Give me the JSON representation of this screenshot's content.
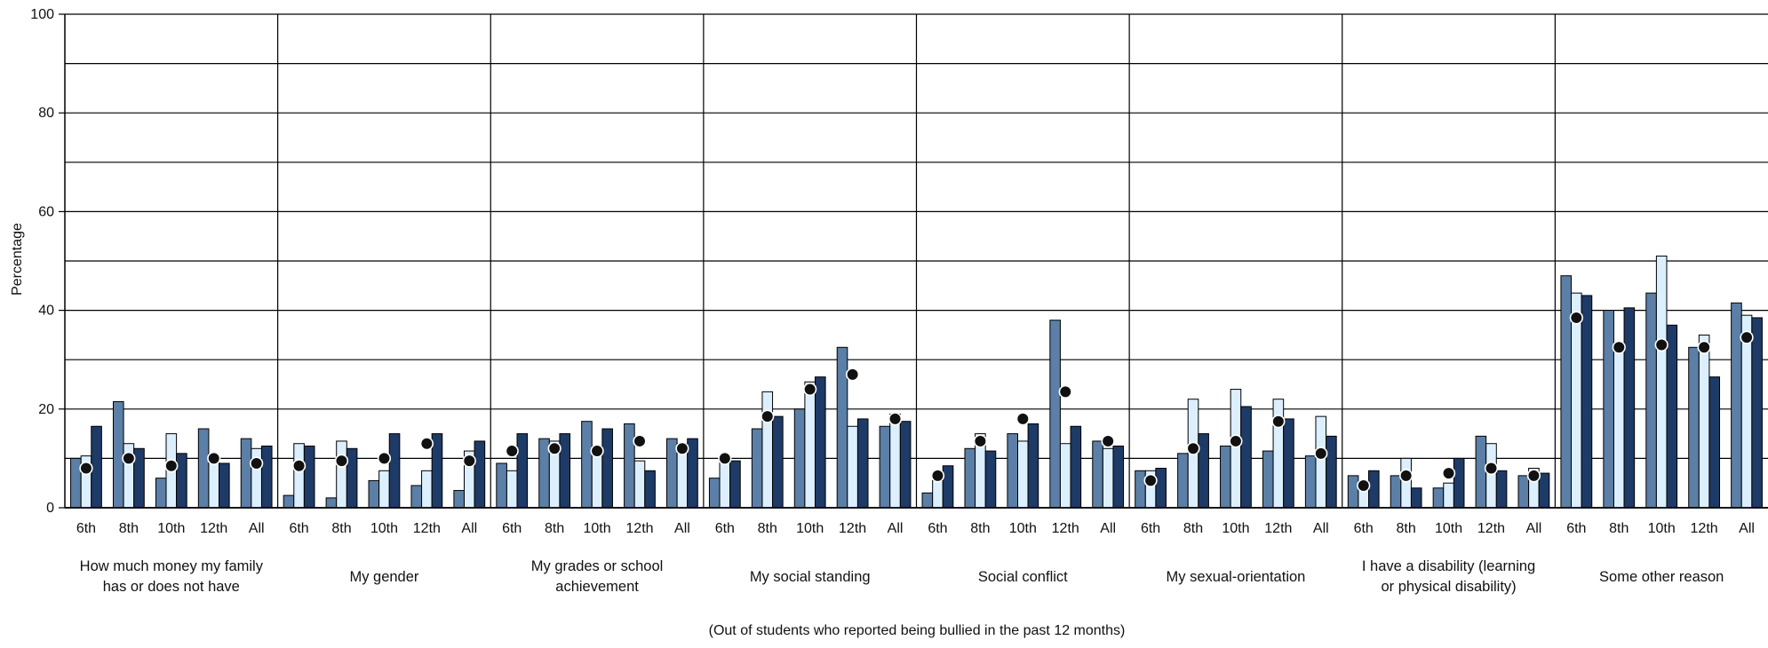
{
  "chart_data": {
    "type": "bar",
    "title": "",
    "xlabel": "(Out of students who reported being bullied in the past 12 months)",
    "ylabel": "Percentage",
    "ylim": [
      0,
      100
    ],
    "yticks": [
      0,
      20,
      40,
      60,
      80,
      100
    ],
    "grid": true,
    "colors": [
      "#5b7fa6",
      "#dcefff",
      "#1e3a66"
    ],
    "marker_color": "#111111",
    "grade_labels": [
      "6th",
      "8th",
      "10th",
      "12th",
      "All"
    ],
    "groups": [
      {
        "label_lines": [
          "How much money my family",
          "has or does not have"
        ],
        "bars": [
          [
            10,
            10.5,
            16.5
          ],
          [
            21.5,
            13,
            12
          ],
          [
            6,
            15,
            11
          ],
          [
            16,
            10,
            9
          ],
          [
            14,
            12,
            12.5
          ]
        ],
        "markers": [
          8,
          10,
          8.5,
          10,
          9
        ]
      },
      {
        "label_lines": [
          "My gender"
        ],
        "bars": [
          [
            2.5,
            13,
            12.5
          ],
          [
            2,
            13.5,
            12
          ],
          [
            5.5,
            7.5,
            15
          ],
          [
            4.5,
            7.5,
            15
          ],
          [
            3.5,
            11.5,
            13.5
          ]
        ],
        "markers": [
          8.5,
          9.5,
          10,
          13,
          9.5
        ]
      },
      {
        "label_lines": [
          "My grades or school",
          "achievement"
        ],
        "bars": [
          [
            9,
            7.5,
            15
          ],
          [
            14,
            13.5,
            15
          ],
          [
            17.5,
            11,
            16
          ],
          [
            17,
            9.5,
            7.5
          ],
          [
            14,
            13,
            14
          ]
        ],
        "markers": [
          11.5,
          12,
          11.5,
          13.5,
          12
        ]
      },
      {
        "label_lines": [
          "My social standing"
        ],
        "bars": [
          [
            6,
            10,
            9.5
          ],
          [
            16,
            23.5,
            18.5
          ],
          [
            20,
            25.5,
            26.5
          ],
          [
            32.5,
            16.5,
            18
          ],
          [
            16.5,
            19,
            17.5
          ]
        ],
        "markers": [
          10,
          18.5,
          24,
          27,
          18
        ]
      },
      {
        "label_lines": [
          "Social conflict"
        ],
        "bars": [
          [
            3,
            5.5,
            8.5
          ],
          [
            12,
            15,
            11.5
          ],
          [
            15,
            13.5,
            17
          ],
          [
            38,
            13,
            16.5
          ],
          [
            13.5,
            12,
            12.5
          ]
        ],
        "markers": [
          6.5,
          13.5,
          18,
          23.5,
          13.5
        ]
      },
      {
        "label_lines": [
          "My sexual-orientation"
        ],
        "bars": [
          [
            7.5,
            7.5,
            8
          ],
          [
            11,
            22,
            15
          ],
          [
            12.5,
            24,
            20.5
          ],
          [
            11.5,
            22,
            18
          ],
          [
            10.5,
            18.5,
            14.5
          ]
        ],
        "markers": [
          5.5,
          12,
          13.5,
          17.5,
          11
        ]
      },
      {
        "label_lines": [
          "I have a disability (learning",
          "or physical disability)"
        ],
        "bars": [
          [
            6.5,
            4,
            7.5
          ],
          [
            6.5,
            10,
            4
          ],
          [
            4,
            5,
            10
          ],
          [
            14.5,
            13,
            7.5
          ],
          [
            6.5,
            8,
            7
          ]
        ],
        "markers": [
          4.5,
          6.5,
          7,
          8,
          6.5
        ]
      },
      {
        "label_lines": [
          "Some other reason"
        ],
        "bars": [
          [
            47,
            43.5,
            43
          ],
          [
            40,
            32.5,
            40.5
          ],
          [
            43.5,
            51,
            37
          ],
          [
            32.5,
            35,
            26.5
          ],
          [
            41.5,
            39,
            38.5
          ]
        ],
        "markers": [
          38.5,
          32.5,
          33,
          32.5,
          34.5
        ]
      }
    ]
  }
}
